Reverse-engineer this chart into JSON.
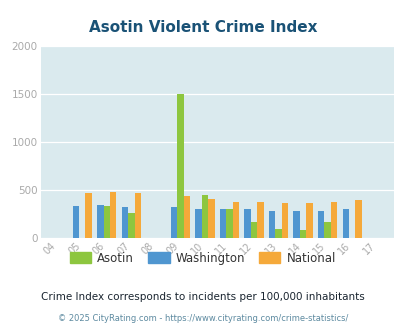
{
  "title": "Asotin Violent Crime Index",
  "years": [
    "04",
    "05",
    "06",
    "07",
    "08",
    "09",
    "10",
    "11",
    "12",
    "13",
    "14",
    "15",
    "16",
    "17"
  ],
  "asotin": [
    0,
    0,
    330,
    260,
    0,
    1500,
    450,
    300,
    160,
    90,
    80,
    160,
    0,
    0
  ],
  "washington": [
    0,
    335,
    340,
    315,
    0,
    320,
    295,
    295,
    295,
    275,
    275,
    275,
    295,
    0
  ],
  "national": [
    0,
    470,
    480,
    470,
    0,
    430,
    400,
    375,
    370,
    360,
    360,
    375,
    395,
    0
  ],
  "asotin_color": "#8dc63f",
  "washington_color": "#4f96d0",
  "national_color": "#f5a93a",
  "bg_color": "#daeaee",
  "ylim": [
    0,
    2000
  ],
  "yticks": [
    0,
    500,
    1000,
    1500,
    2000
  ],
  "subtitle": "Crime Index corresponds to incidents per 100,000 inhabitants",
  "footer": "© 2025 CityRating.com - https://www.cityrating.com/crime-statistics/",
  "title_color": "#1a5276",
  "subtitle_color": "#1a2530",
  "footer_color": "#5d8aa0",
  "tick_color": "#aaaaaa",
  "legend_text_color": "#333333",
  "bar_order": [
    "washington",
    "asotin",
    "national"
  ]
}
